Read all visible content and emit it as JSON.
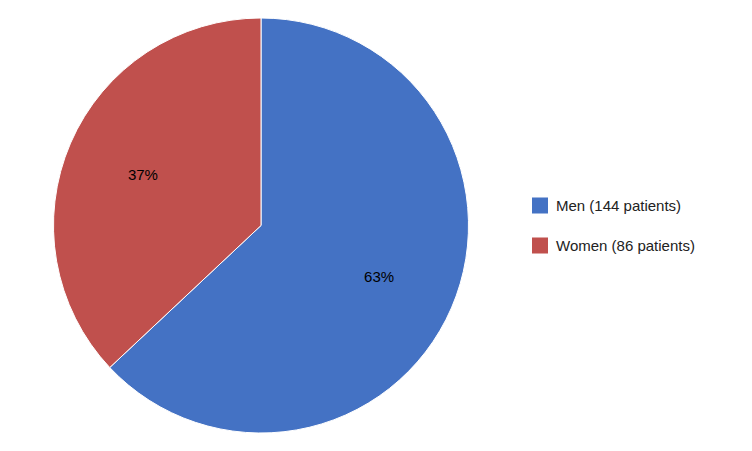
{
  "chart_data": {
    "type": "pie",
    "categories": [
      "Men (144 patients)",
      "Women (86 patients)"
    ],
    "values": [
      63,
      37
    ],
    "value_labels": [
      "63%",
      "37%"
    ],
    "colors": [
      "#4472C4",
      "#C0504D"
    ],
    "data_labels": true,
    "legend": "right"
  }
}
